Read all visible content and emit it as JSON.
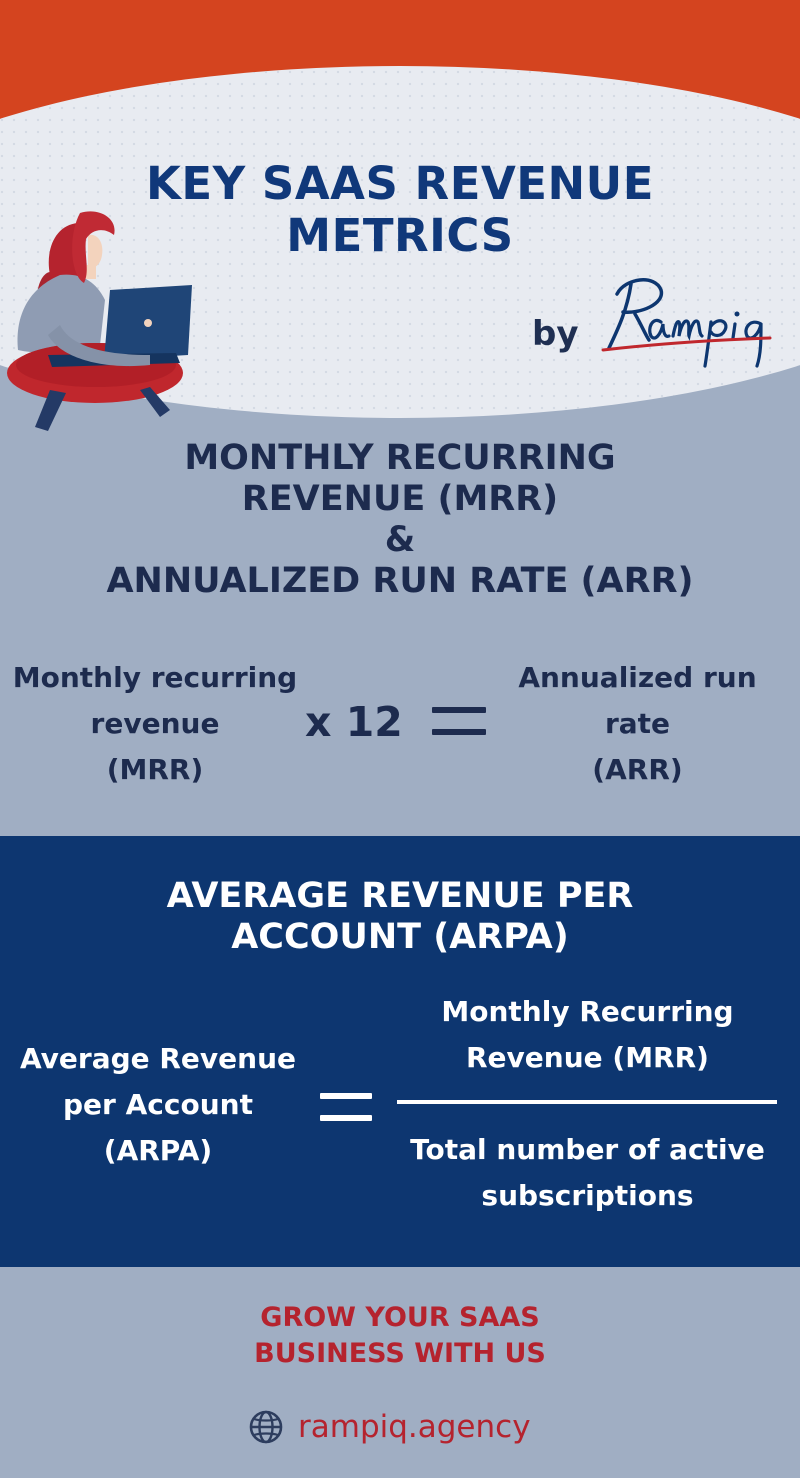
{
  "header": {
    "title_line1": "KEY SAAS REVENUE",
    "title_line2": "METRICS",
    "by": "by",
    "logo": {
      "text": "Rampiq",
      "icon": "rampiq-logo"
    },
    "illustration": "woman-with-laptop-illustration"
  },
  "mrr_section": {
    "title_line1": "MONTHLY RECURRING",
    "title_line2": "REVENUE (MRR)",
    "title_line3": "&",
    "title_line4": "ANNUALIZED RUN RATE (ARR)",
    "lhs_line1": "Monthly recurring",
    "lhs_line2": "revenue",
    "lhs_line3": "(MRR)",
    "multiplier": "x 12",
    "rhs_line1": "Annualized run",
    "rhs_line2": "rate",
    "rhs_line3": "(ARR)"
  },
  "arpa_section": {
    "title_line1": "AVERAGE REVENUE PER",
    "title_line2": "ACCOUNT (ARPA)",
    "lhs_line1": "Average Revenue",
    "lhs_line2": "per Account",
    "lhs_line3": "(ARPA)",
    "numerator_line1": "Monthly Recurring",
    "numerator_line2": "Revenue (MRR)",
    "denominator_line1": "Total number of active",
    "denominator_line2": "subscriptions"
  },
  "footer": {
    "cta_line1": "GROW YOUR SAAS",
    "cta_line2": "BUSINESS WITH US",
    "website": "rampiq.agency",
    "website_icon": "globe-icon"
  },
  "colors": {
    "header_red": "#d4441f",
    "navy": "#0d3670",
    "title_blue": "#10387a",
    "slate": "#a0aec3",
    "cta_red": "#b5232e"
  }
}
